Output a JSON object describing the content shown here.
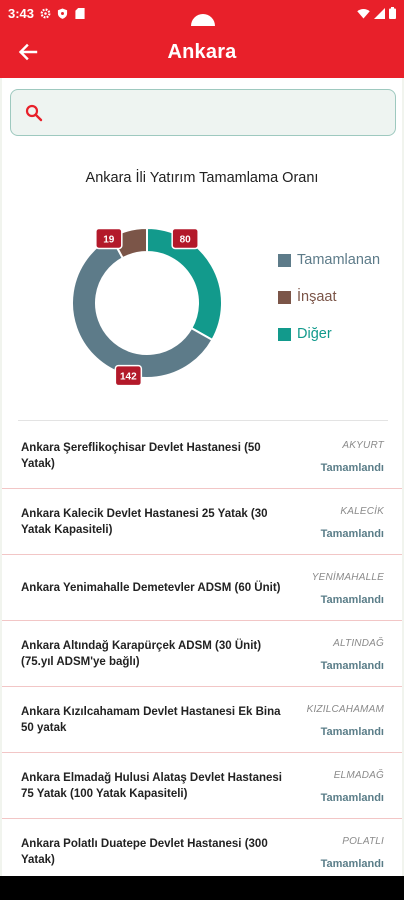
{
  "status_bar": {
    "time": "3:43",
    "icons": [
      "gear-icon",
      "shield-icon",
      "sd-card-icon",
      "wifi-icon",
      "signal-icon",
      "battery-icon"
    ]
  },
  "app_bar": {
    "title": "Ankara",
    "back_icon": "arrow-left-icon"
  },
  "search": {
    "placeholder": "",
    "value": "",
    "icon": "search-icon"
  },
  "chart": {
    "title": "Ankara İli Yatırım Tamamlama Oranı",
    "legend": [
      {
        "label": "Tamamlanan",
        "color": "#5d7b89"
      },
      {
        "label": "İnşaat",
        "color": "#7b5548"
      },
      {
        "label": "Diğer",
        "color": "#129a8c"
      }
    ]
  },
  "chart_data": {
    "type": "pie",
    "title": "Ankara İli Yatırım Tamamlama Oranı",
    "categories": [
      "Tamamlanan",
      "İnşaat",
      "Diğer"
    ],
    "values": [
      142,
      19,
      80
    ],
    "colors": [
      "#5d7b89",
      "#7b5548",
      "#129a8c"
    ],
    "donut": true,
    "legend_position": "right",
    "label_color": "#b3192a"
  },
  "projects": [
    {
      "title": "Ankara Şereflikoçhisar Devlet Hastanesi (50 Yatak)",
      "district": "AKYURT",
      "status": "Tamamlandı"
    },
    {
      "title": "Ankara Kalecik Devlet Hastanesi 25 Yatak  (30 Yatak Kapasiteli)",
      "district": "KALECİK",
      "status": "Tamamlandı"
    },
    {
      "title": "Ankara Yenimahalle Demetevler ADSM (60 Ünit)",
      "district": "YENİMAHALLE",
      "status": "Tamamlandı"
    },
    {
      "title": "Ankara Altındağ Karapürçek ADSM (30 Ünit) (75.yıl ADSM'ye bağlı)",
      "district": "ALTINDAĞ",
      "status": "Tamamlandı"
    },
    {
      "title": "Ankara Kızılcahamam  Devlet Hastanesi Ek Bina 50 yatak",
      "district": "KIZILCAHAMAM",
      "status": "Tamamlandı"
    },
    {
      "title": "Ankara Elmadağ  Hulusi Alataş Devlet Hastanesi  75 Yatak (100 Yatak Kapasiteli)",
      "district": "ELMADAĞ",
      "status": "Tamamlandı"
    },
    {
      "title": "Ankara Polatlı Duatepe Devlet Hastanesi  (300 Yatak)",
      "district": "POLATLI",
      "status": "Tamamlandı"
    }
  ]
}
